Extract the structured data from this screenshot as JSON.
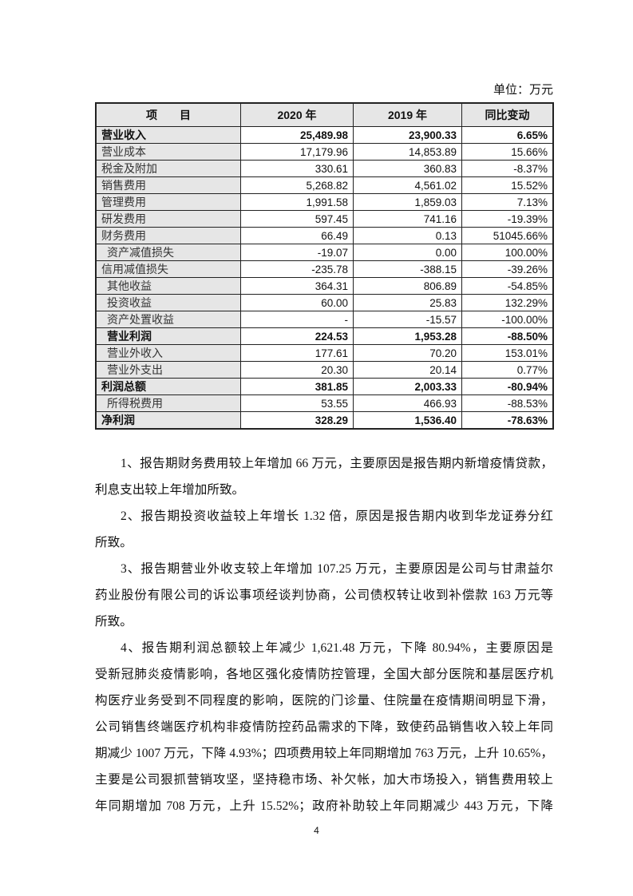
{
  "unit_label": "单位：万元",
  "table": {
    "headers": [
      "项　　目",
      "2020 年",
      "2019 年",
      "同比变动"
    ],
    "rows": [
      {
        "name": "营业收入",
        "y2020": "25,489.98",
        "y2019": "23,900.33",
        "change": "6.65%",
        "bold": true
      },
      {
        "name": "营业成本",
        "y2020": "17,179.96",
        "y2019": "14,853.89",
        "change": "15.66%"
      },
      {
        "name": "税金及附加",
        "y2020": "330.61",
        "y2019": "360.83",
        "change": "-8.37%"
      },
      {
        "name": "销售费用",
        "y2020": "5,268.82",
        "y2019": "4,561.02",
        "change": "15.52%"
      },
      {
        "name": "管理费用",
        "y2020": "1,991.58",
        "y2019": "1,859.03",
        "change": "7.13%"
      },
      {
        "name": "研发费用",
        "y2020": "597.45",
        "y2019": "741.16",
        "change": "-19.39%"
      },
      {
        "name": "财务费用",
        "y2020": "66.49",
        "y2019": "0.13",
        "change": "51045.66%"
      },
      {
        "name": "资产减值损失",
        "y2020": "-19.07",
        "y2019": "0.00",
        "change": "100.00%",
        "indent": true
      },
      {
        "name": "信用减值损失",
        "y2020": "-235.78",
        "y2019": "-388.15",
        "change": "-39.26%"
      },
      {
        "name": "其他收益",
        "y2020": "364.31",
        "y2019": "806.89",
        "change": "-54.85%",
        "indent": true
      },
      {
        "name": "投资收益",
        "y2020": "60.00",
        "y2019": "25.83",
        "change": "132.29%",
        "indent": true
      },
      {
        "name": "资产处置收益",
        "y2020": "-",
        "y2019": "-15.57",
        "change": "-100.00%",
        "indent": true
      },
      {
        "name": "营业利润",
        "y2020": "224.53",
        "y2019": "1,953.28",
        "change": "-88.50%",
        "bold": true,
        "indent": true
      },
      {
        "name": "营业外收入",
        "y2020": "177.61",
        "y2019": "70.20",
        "change": "153.01%",
        "indent": true
      },
      {
        "name": "营业外支出",
        "y2020": "20.30",
        "y2019": "20.14",
        "change": "0.77%",
        "indent": true
      },
      {
        "name": "利润总额",
        "y2020": "381.85",
        "y2019": "2,003.33",
        "change": "-80.94%",
        "bold": true
      },
      {
        "name": "所得税费用",
        "y2020": "53.55",
        "y2019": "466.93",
        "change": "-88.53%",
        "indent": true
      },
      {
        "name": "净利润",
        "y2020": "328.29",
        "y2019": "1,536.40",
        "change": "-78.63%",
        "bold": true
      }
    ]
  },
  "paragraphs": [
    [
      "1、报告期财务费用较上年增加 66 万元，主要原因是报告期内新增疫情贷款，",
      "利息支出较上年增加所致。"
    ],
    [
      "2、报告期投资收益较上年增长 1.32 倍，原因是报告期内收到华龙证券分红",
      "所致。"
    ],
    [
      "3、报告期营业外收支较上年增加 107.25 万元，主要原因是公司与甘肃益尔",
      "药业股份有限公司的诉讼事项经谈判协商，公司债权转让收到补偿款 163 万元等",
      "所致。"
    ],
    [
      "4、报告期利润总额较上年减少 1,621.48 万元，下降 80.94%，主要原因是",
      "受新冠肺炎疫情影响，各地区强化疫情防控管理，全国大部分医院和基层医疗机",
      "构医疗业务受到不同程度的影响，医院的门诊量、住院量在疫情期间明显下滑，",
      "公司销售终端医疗机构非疫情防控药品需求的下降，致使药品销售收入较上年同",
      "期减少 1007 万元，下降 4.93%；四项费用较上年同期增加 763 万元，上升 10.65%，",
      "主要是公司狠抓营销攻坚，坚持稳市场、补欠帐，加大市场投入，销售费用较上",
      "年同期增加 708 万元，上升 15.52%；政府补助较上年同期减少 443 万元，下降"
    ]
  ],
  "last_paragraph_continues": true,
  "page_number": "4"
}
